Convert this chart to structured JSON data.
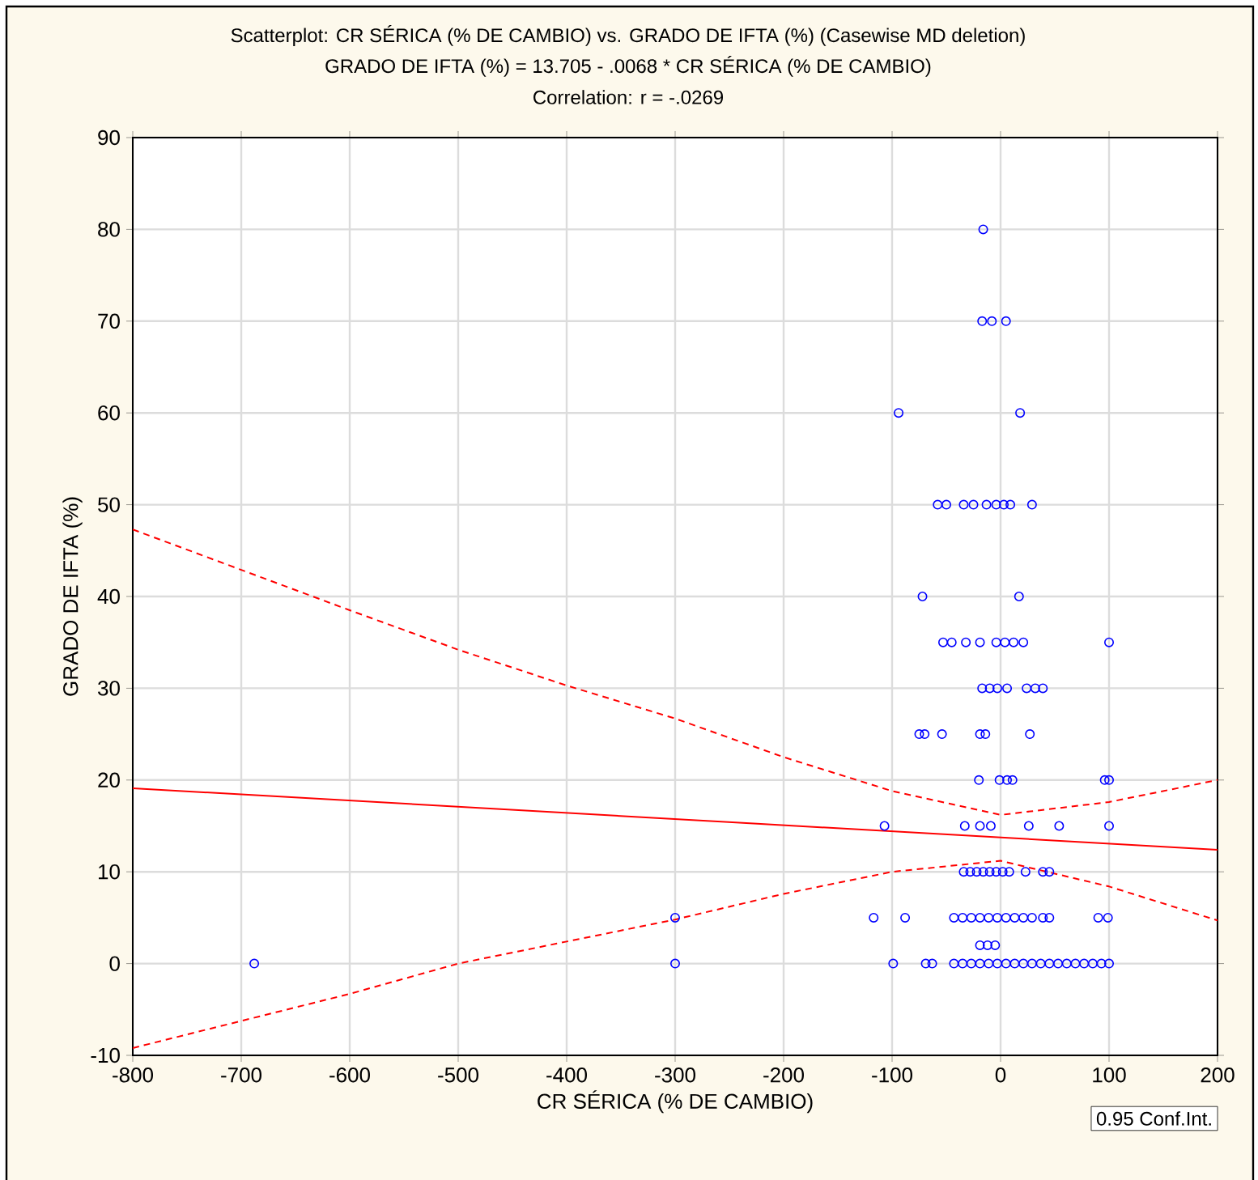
{
  "chart_data": {
    "type": "scatter",
    "title": "Scatterplot: CR SÉRICA (% DE CAMBIO) vs. GRADO DE IFTA (%) (Casewise MD deletion)",
    "subtitle": "GRADO DE IFTA (%) = 13.705 - .0068  * CR SÉRICA (% DE CAMBIO)",
    "annotations": [
      "Correlation: r = -.0269",
      "0.95 Conf.Int."
    ],
    "xlabel": "CR SÉRICA (% DE CAMBIO)",
    "ylabel": "GRADO DE IFTA (%)",
    "xlim": [
      -800,
      200
    ],
    "ylim": [
      -10,
      90
    ],
    "xticks": [
      -800,
      -700,
      -600,
      -500,
      -400,
      -300,
      -200,
      -100,
      0,
      100,
      200
    ],
    "yticks": [
      -10,
      0,
      10,
      20,
      30,
      40,
      50,
      60,
      70,
      80,
      90
    ],
    "grid": true,
    "marker": "circle",
    "series": [
      {
        "color": "#0000ff",
        "x": [
          -16,
          -17,
          -8,
          5,
          -94,
          18,
          -58,
          -50,
          -34,
          -25,
          -13,
          -4,
          3,
          9,
          29,
          -72,
          17,
          -53,
          -45,
          -32,
          -19,
          -4,
          4,
          12,
          21,
          100,
          -17,
          -10,
          -3,
          6,
          24,
          32,
          39,
          -75,
          -70,
          -54,
          -19,
          -14,
          27,
          -20,
          -1,
          6,
          11,
          96,
          100,
          -107,
          -33,
          -19,
          -9,
          26,
          54,
          100,
          -34,
          -28,
          -22,
          -16,
          -10,
          -4,
          2,
          8,
          23,
          39,
          45,
          -300,
          -117,
          -88,
          -43,
          -35,
          -27,
          -19,
          -11,
          -3,
          5,
          13,
          21,
          29,
          39,
          45,
          90,
          99,
          -19,
          -12,
          -5,
          -688,
          -300,
          -99,
          -69,
          -63,
          -43,
          -35,
          -27,
          -19,
          -11,
          -3,
          5,
          13,
          21,
          29,
          37,
          45,
          53,
          61,
          69,
          77,
          85,
          93,
          100
        ],
        "values": [
          80,
          70,
          70,
          70,
          60,
          60,
          50,
          50,
          50,
          50,
          50,
          50,
          50,
          50,
          50,
          40,
          40,
          35,
          35,
          35,
          35,
          35,
          35,
          35,
          35,
          35,
          30,
          30,
          30,
          30,
          30,
          30,
          30,
          25,
          25,
          25,
          25,
          25,
          25,
          20,
          20,
          20,
          20,
          20,
          20,
          15,
          15,
          15,
          15,
          15,
          15,
          15,
          10,
          10,
          10,
          10,
          10,
          10,
          10,
          10,
          10,
          10,
          10,
          5,
          5,
          5,
          5,
          5,
          5,
          5,
          5,
          5,
          5,
          5,
          5,
          5,
          5,
          5,
          5,
          5,
          2,
          2,
          2,
          0,
          0,
          0,
          0,
          0,
          0,
          0,
          0,
          0,
          0,
          0,
          0,
          0,
          0,
          0,
          0,
          0,
          0,
          0,
          0,
          0,
          0,
          0,
          0
        ]
      },
      {
        "type": "line",
        "color": "#ff0000",
        "line_style": "solid",
        "marker": "none",
        "x": [
          -800,
          200
        ],
        "values": [
          19.1,
          12.4
        ]
      },
      {
        "type": "line",
        "color": "#ff0000",
        "line_style": "dashed",
        "marker": "none",
        "x": [
          -800,
          -600,
          -500,
          -400,
          -300,
          -200,
          -100,
          0,
          100,
          200
        ],
        "values": [
          47.3,
          38.5,
          34.2,
          30.3,
          26.7,
          22.5,
          18.8,
          16.2,
          17.6,
          20
        ]
      },
      {
        "type": "line",
        "color": "#ff0000",
        "line_style": "dashed",
        "marker": "none",
        "x": [
          -800,
          -600,
          -500,
          -400,
          -300,
          -200,
          -100,
          0,
          100,
          200
        ],
        "values": [
          -9.2,
          -3.3,
          0,
          2.4,
          4.8,
          7.6,
          10,
          11.2,
          8.4,
          4.7
        ]
      }
    ]
  }
}
